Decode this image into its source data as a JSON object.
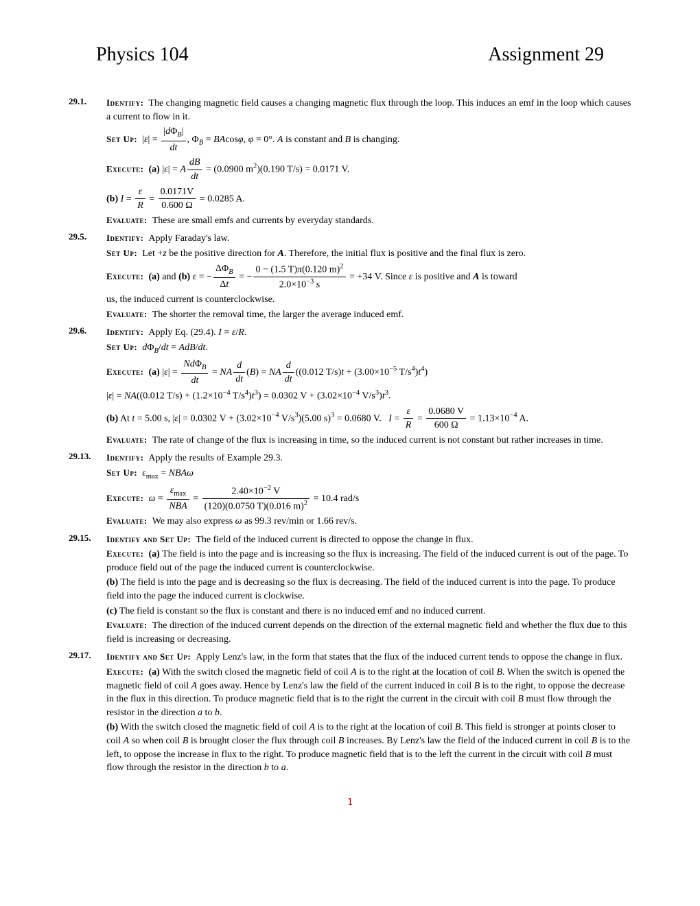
{
  "title_left": "Physics 104",
  "title_right": "Assignment 29",
  "labels": {
    "identify": "Identify:",
    "setup": "Set Up:",
    "execute": "Execute:",
    "evaluate": "Evaluate:",
    "identify_setup": "Identify and Set Up:"
  },
  "problems": {
    "p1": {
      "num": "29.1.",
      "identify": "The changing magnetic field causes a changing magnetic flux through the loop. This induces an emf in the loop which causes a current to flow in it.",
      "setup": "|ε| = |dΦ_B/dt|, Φ_B = BAcosφ, φ = 0°. A is constant and B is changing.",
      "exec_a": "(a) |ε| = A(dB/dt) = (0.0900 m²)(0.190 T/s) = 0.0171 V.",
      "exec_b": "(b) I = ε/R = 0.0171V / 0.600 Ω = 0.0285 A.",
      "evaluate": "These are small emfs and currents by everyday standards."
    },
    "p5": {
      "num": "29.5.",
      "identify": "Apply Faraday's law.",
      "setup": "Let +z be the positive direction for A. Therefore, the initial flux is positive and the final flux is zero.",
      "exec": "(a) and (b) ε = −ΔΦ_B/Δt = −[0 − (1.5 T)π(0.120 m)²] / (2.0×10⁻³ s) = +34 V. Since ε is positive and A is toward",
      "exec_tail": "us, the induced current is counterclockwise.",
      "evaluate": "The shorter the removal time, the larger the average induced emf."
    },
    "p6": {
      "num": "29.6.",
      "identify": "Apply Eq. (29.4). I = ε/R.",
      "setup": "dΦ_B/dt = AdB/dt.",
      "exec_a1": "(a) |ε| = NdΦ_B/dt = NA(d/dt)(B) = NA(d/dt)((0.012 T/s)t + (3.00×10⁻⁵ T/s⁴)t⁴)",
      "exec_a2": "|ε| = NA((0.012 T/s) + (1.2×10⁻⁴ T/s⁴)t³) = 0.0302 V + (3.02×10⁻⁴ V/s³)t³.",
      "exec_b": "(b) At t = 5.00 s, |ε| = 0.0302 V + (3.02×10⁻⁴ V/s³)(5.00 s)³ = 0.0680 V.   I = ε/R = 0.0680 V / 600 Ω = 1.13×10⁻⁴ A.",
      "evaluate": "The rate of change of the flux is increasing in time, so the induced current is not constant but rather increases in time."
    },
    "p13": {
      "num": "29.13.",
      "identify": "Apply the results of Example 29.3.",
      "setup": "ε_max = NBAω",
      "exec": "ω = ε_max / NBA = (2.40×10⁻² V) / [(120)(0.0750 T)(0.016 m)²] = 10.4 rad/s",
      "evaluate": "We may also express ω as 99.3 rev/min or 1.66 rev/s."
    },
    "p15": {
      "num": "29.15.",
      "identify_setup": "The field of the induced current is directed to oppose the change in flux.",
      "exec_a": "(a) The field is into the page and is increasing so the flux is increasing. The field of the induced current is out of the page. To produce field out of the page the induced current is counterclockwise.",
      "exec_b": "(b) The field is into the page and is decreasing so the flux is decreasing. The field of the induced current is into the page. To produce field into the page the induced current is clockwise.",
      "exec_c": "(c) The field is constant so the flux is constant and there is no induced emf and no induced current.",
      "evaluate": "The direction of the induced current depends on the direction of the external magnetic field and whether the flux due to this field is increasing or decreasing."
    },
    "p17": {
      "num": "29.17.",
      "identify_setup": "Apply Lenz's law, in the form that states that the flux of the induced current tends to oppose the change in flux.",
      "exec_a": "(a) With the switch closed the magnetic field of coil A is to the right at the location of coil B. When the switch is opened the magnetic field of coil A goes away. Hence by Lenz's law the field of the current induced in coil B is to the right, to oppose the decrease in the flux in this direction. To produce magnetic field that is to the right the current in the circuit with coil B must flow through the resistor in the direction a to b.",
      "exec_b": "(b) With the switch closed the magnetic field of coil A is to the right at the location of coil B. This field is stronger at points closer to coil A so when coil B is brought closer the flux through coil B increases. By Lenz's law the field of the induced current in coil B is to the left, to oppose the increase in flux to the right. To produce magnetic field that is to the left the current in the circuit with coil B must flow through the resistor in the direction b to a."
    }
  },
  "page_number": "1"
}
